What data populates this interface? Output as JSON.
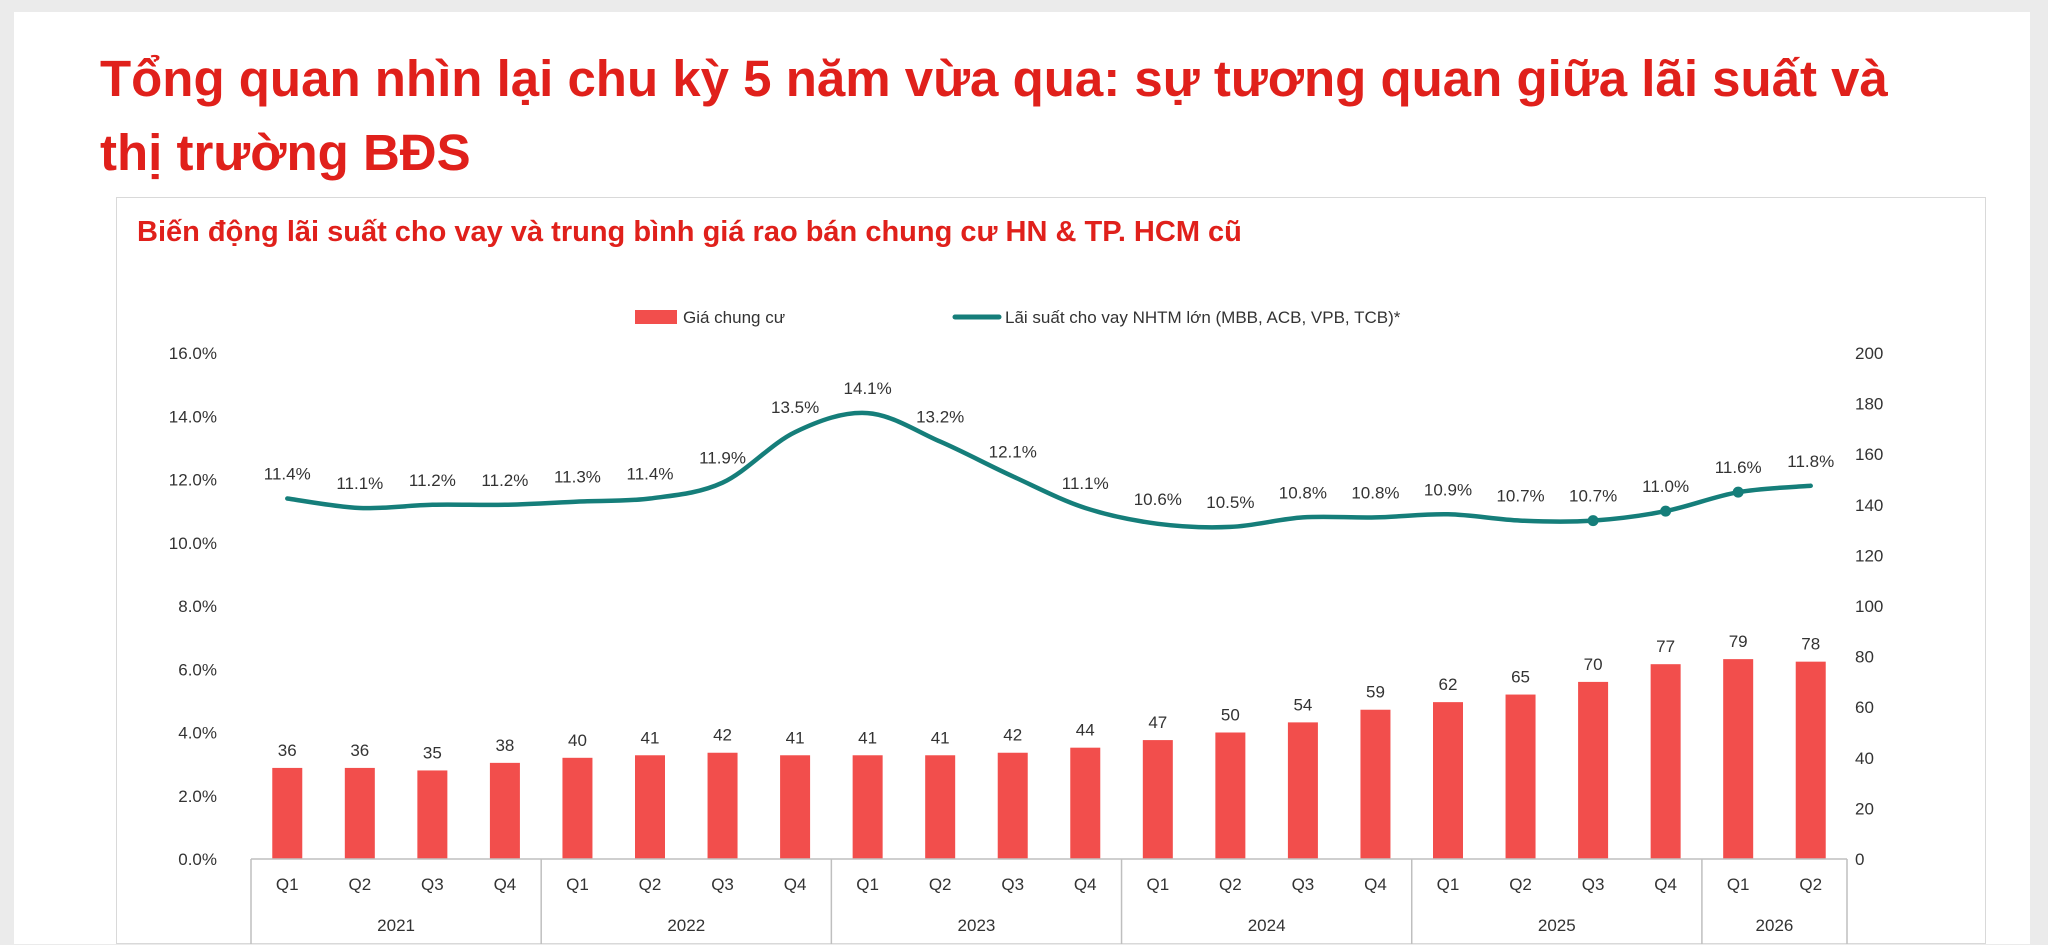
{
  "title": "Tổng quan nhìn lại chu kỳ 5 năm vừa qua: sự tương quan giữa lãi suất và thị trường BĐS",
  "chart_data": {
    "type": "bar+line",
    "title": "Biến động lãi suất cho vay và trung bình giá rao bán chung cư HN & TP. HCM cũ",
    "legend": {
      "placement": "top-center",
      "entries": [
        "Giá chung cư",
        "Lãi suất cho vay NHTM lớn (MBB, ACB, VPB, TCB)*"
      ]
    },
    "categories": [
      "Q1",
      "Q2",
      "Q3",
      "Q4",
      "Q1",
      "Q2",
      "Q3",
      "Q4",
      "Q1",
      "Q2",
      "Q3",
      "Q4",
      "Q1",
      "Q2",
      "Q3",
      "Q4",
      "Q1",
      "Q2",
      "Q3",
      "Q4",
      "Q1",
      "Q2"
    ],
    "years": [
      {
        "label": "2021",
        "count": 4
      },
      {
        "label": "2022",
        "count": 4
      },
      {
        "label": "2023",
        "count": 4
      },
      {
        "label": "2024",
        "count": 4
      },
      {
        "label": "2025",
        "count": 4
      },
      {
        "label": "2026",
        "count": 2
      }
    ],
    "series": [
      {
        "name": "Giá chung cư",
        "type": "bar",
        "axis": "right",
        "color": "#f24e4c",
        "values": [
          36,
          36,
          35,
          38,
          40,
          41,
          42,
          41,
          41,
          41,
          42,
          44,
          47,
          50,
          54,
          59,
          62,
          65,
          70,
          77,
          79,
          78
        ],
        "labels": [
          "36",
          "36",
          "35",
          "38",
          "40",
          "41",
          "42",
          "41",
          "41",
          "41",
          "42",
          "44",
          "47",
          "50",
          "54",
          "59",
          "62",
          "65",
          "70",
          "77",
          "79",
          "78"
        ]
      },
      {
        "name": "Lãi suất cho vay NHTM lớn (MBB, ACB, VPB, TCB)*",
        "type": "line",
        "axis": "left",
        "color": "#157e7a",
        "values": [
          11.4,
          11.1,
          11.2,
          11.2,
          11.3,
          11.4,
          11.9,
          13.5,
          14.1,
          13.2,
          12.1,
          11.1,
          10.6,
          10.5,
          10.8,
          10.8,
          10.9,
          10.7,
          10.7,
          11.0,
          11.6,
          11.8
        ],
        "labels": [
          "11.4%",
          "11.1%",
          "11.2%",
          "11.2%",
          "11.3%",
          "11.4%",
          "11.9%",
          "13.5%",
          "14.1%",
          "13.2%",
          "12.1%",
          "11.1%",
          "10.6%",
          "10.5%",
          "10.8%",
          "10.8%",
          "10.9%",
          "10.7%",
          "10.7%",
          "11.0%",
          "11.6%",
          "11.8%"
        ]
      }
    ],
    "y_left": {
      "min": 0,
      "max": 16,
      "ticks": [
        "0.0%",
        "2.0%",
        "4.0%",
        "6.0%",
        "8.0%",
        "10.0%",
        "12.0%",
        "14.0%",
        "16.0%"
      ]
    },
    "y_right": {
      "min": 0,
      "max": 200,
      "ticks": [
        "0",
        "20",
        "40",
        "60",
        "80",
        "100",
        "120",
        "140",
        "160",
        "180",
        "200"
      ]
    },
    "grid": false
  }
}
